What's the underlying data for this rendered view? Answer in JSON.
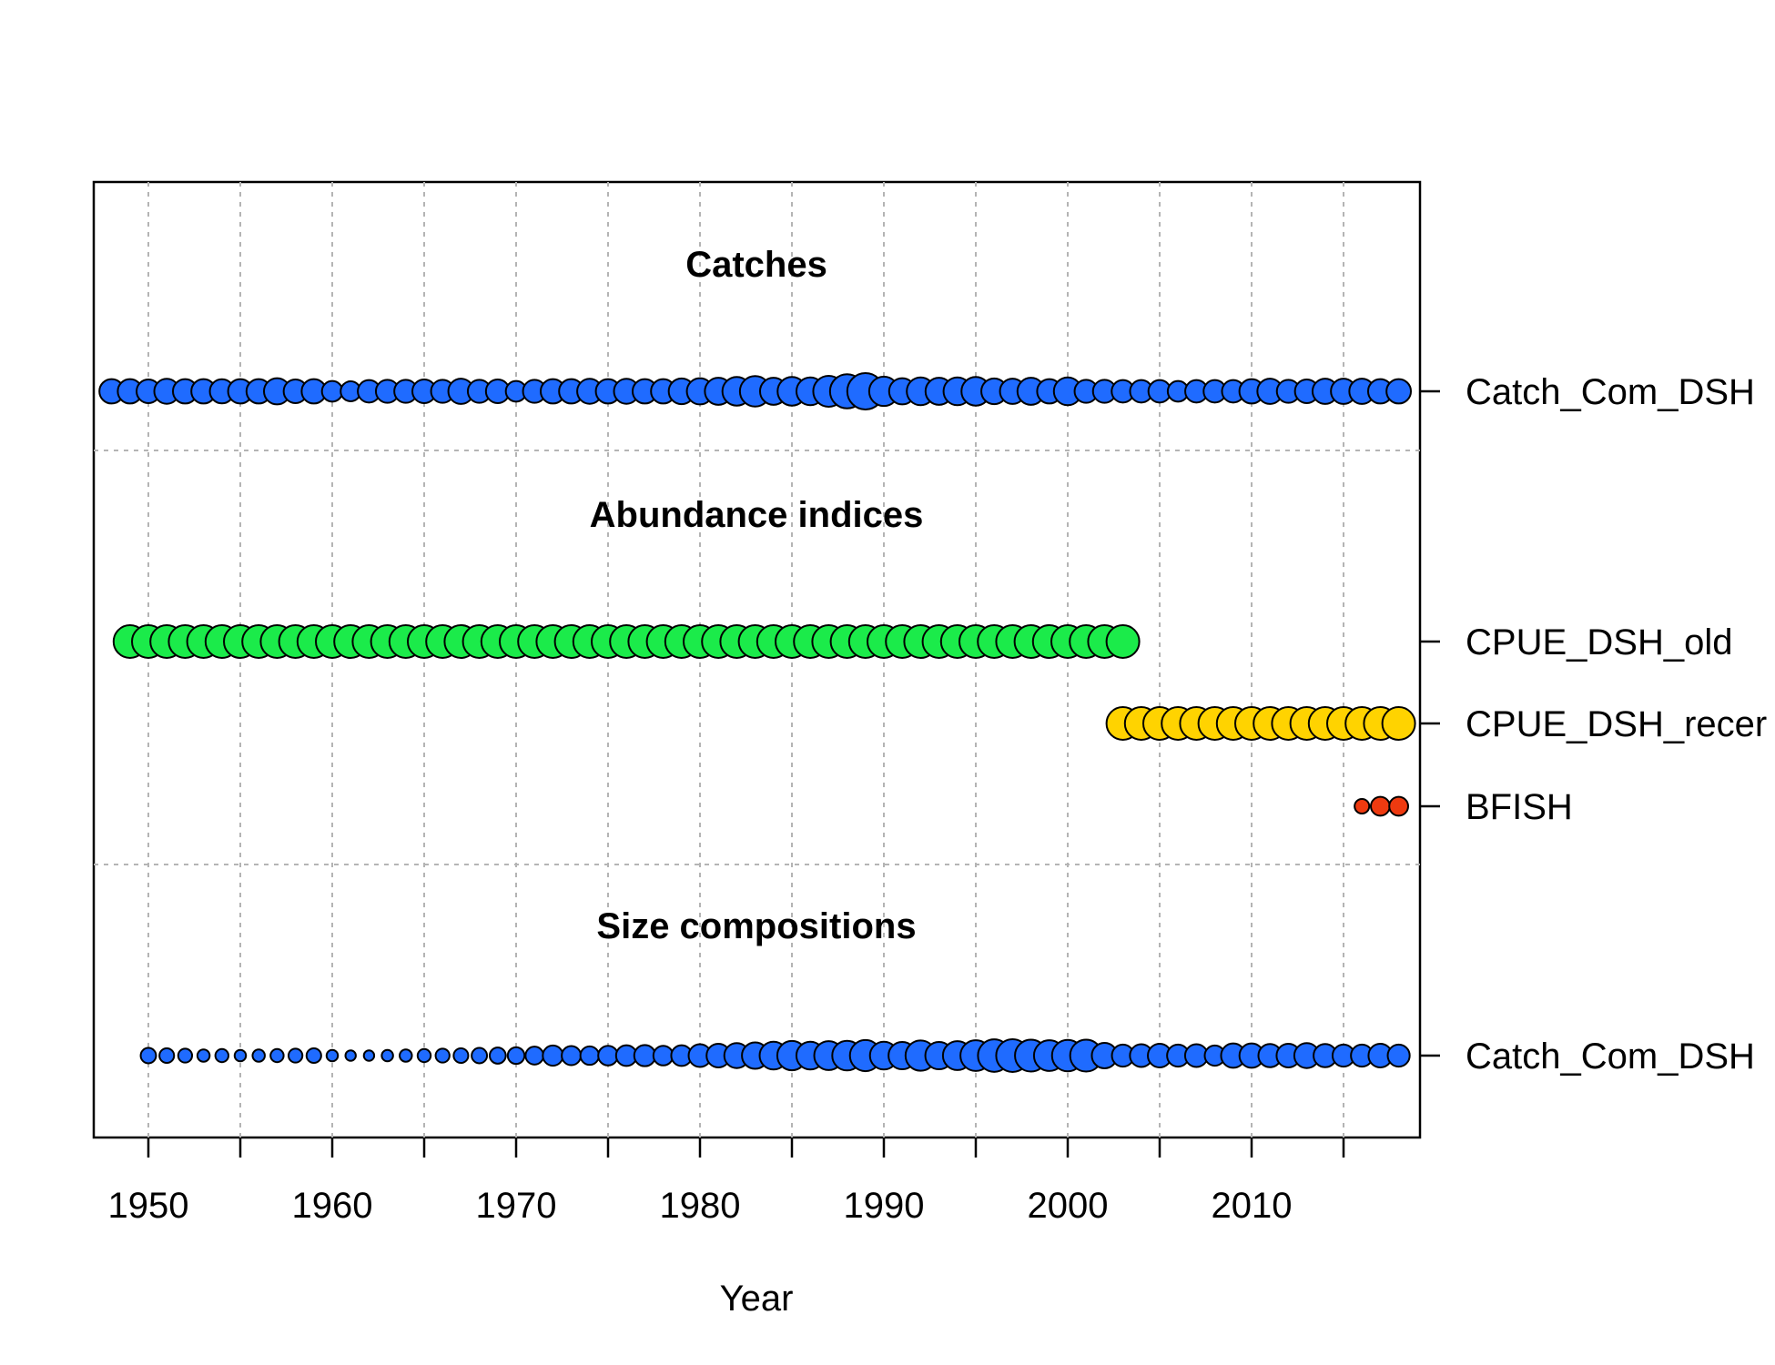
{
  "chart_data": {
    "type": "scatter",
    "xlabel": "Year",
    "xlim": [
      1947,
      2019
    ],
    "x_ticks": [
      1950,
      1955,
      1960,
      1965,
      1970,
      1975,
      1980,
      1985,
      1990,
      1995,
      2000,
      2005,
      2010,
      2015
    ],
    "x_tick_labels": [
      "1950",
      "1960",
      "1970",
      "1980",
      "1990",
      "2000",
      "2010"
    ],
    "grid": true,
    "sections": [
      {
        "title": "Catches"
      },
      {
        "title": "Abundance indices"
      },
      {
        "title": "Size compositions"
      }
    ],
    "series": [
      {
        "name": "Catch_Com_DSH",
        "group": "Catches",
        "color": "#1F6BFF",
        "x": [
          1948,
          1949,
          1950,
          1951,
          1952,
          1953,
          1954,
          1955,
          1956,
          1957,
          1958,
          1959,
          1960,
          1961,
          1962,
          1963,
          1964,
          1965,
          1966,
          1967,
          1968,
          1969,
          1970,
          1971,
          1972,
          1973,
          1974,
          1975,
          1976,
          1977,
          1978,
          1979,
          1980,
          1981,
          1982,
          1983,
          1984,
          1985,
          1986,
          1987,
          1988,
          1989,
          1990,
          1991,
          1992,
          1993,
          1994,
          1995,
          1996,
          1997,
          1998,
          1999,
          2000,
          2001,
          2002,
          2003,
          2004,
          2005,
          2006,
          2007,
          2008,
          2009,
          2010,
          2011,
          2012,
          2013,
          2014,
          2015,
          2016,
          2017,
          2018
        ],
        "values": [
          0.45,
          0.45,
          0.42,
          0.47,
          0.45,
          0.45,
          0.44,
          0.45,
          0.45,
          0.52,
          0.42,
          0.45,
          0.32,
          0.3,
          0.38,
          0.4,
          0.4,
          0.42,
          0.4,
          0.48,
          0.4,
          0.42,
          0.32,
          0.4,
          0.45,
          0.45,
          0.47,
          0.45,
          0.47,
          0.45,
          0.45,
          0.5,
          0.52,
          0.55,
          0.62,
          0.7,
          0.55,
          0.62,
          0.58,
          0.72,
          0.88,
          1.0,
          0.65,
          0.52,
          0.58,
          0.55,
          0.58,
          0.62,
          0.5,
          0.48,
          0.55,
          0.45,
          0.58,
          0.4,
          0.4,
          0.38,
          0.38,
          0.38,
          0.32,
          0.38,
          0.38,
          0.38,
          0.45,
          0.48,
          0.4,
          0.42,
          0.48,
          0.48,
          0.48,
          0.45,
          0.45
        ]
      },
      {
        "name": "CPUE_DSH_old",
        "group": "Abundance indices",
        "color": "#1BEB4A",
        "x": [
          1949,
          1950,
          1951,
          1952,
          1953,
          1954,
          1955,
          1956,
          1957,
          1958,
          1959,
          1960,
          1961,
          1962,
          1963,
          1964,
          1965,
          1966,
          1967,
          1968,
          1969,
          1970,
          1971,
          1972,
          1973,
          1974,
          1975,
          1976,
          1977,
          1978,
          1979,
          1980,
          1981,
          1982,
          1983,
          1984,
          1985,
          1986,
          1987,
          1988,
          1989,
          1990,
          1991,
          1992,
          1993,
          1994,
          1995,
          1996,
          1997,
          1998,
          1999,
          2000,
          2001,
          2002,
          2003
        ],
        "values": [
          1,
          1,
          1,
          1,
          1,
          1,
          1,
          1,
          1,
          1,
          1,
          1,
          1,
          1,
          1,
          1,
          1,
          1,
          1,
          1,
          1,
          1,
          1,
          1,
          1,
          1,
          1,
          1,
          1,
          1,
          1,
          1,
          1,
          1,
          1,
          1,
          1,
          1,
          1,
          1,
          1,
          1,
          1,
          1,
          1,
          1,
          1,
          1,
          1,
          1,
          1,
          1,
          1,
          1,
          1
        ]
      },
      {
        "name": "CPUE_DSH_recent",
        "display_label": "CPUE_DSH_recer",
        "group": "Abundance indices",
        "color": "#FFD300",
        "x": [
          2003,
          2004,
          2005,
          2006,
          2007,
          2008,
          2009,
          2010,
          2011,
          2012,
          2013,
          2014,
          2015,
          2016,
          2017,
          2018
        ],
        "values": [
          1,
          1,
          1,
          1,
          1,
          1,
          1,
          1,
          1,
          1,
          1,
          1,
          1,
          1,
          1,
          1
        ]
      },
      {
        "name": "BFISH",
        "group": "Abundance indices",
        "color": "#EE3A10",
        "x": [
          2016,
          2017,
          2018
        ],
        "values": [
          0.45,
          0.75,
          0.75
        ]
      },
      {
        "name": "Catch_Com_DSH",
        "group": "Size compositions",
        "color": "#1F6BFF",
        "x": [
          1950,
          1951,
          1952,
          1953,
          1954,
          1955,
          1956,
          1957,
          1958,
          1959,
          1960,
          1961,
          1962,
          1963,
          1964,
          1965,
          1966,
          1967,
          1968,
          1969,
          1970,
          1971,
          1972,
          1973,
          1974,
          1975,
          1976,
          1977,
          1978,
          1979,
          1980,
          1981,
          1982,
          1983,
          1984,
          1985,
          1986,
          1987,
          1988,
          1989,
          1990,
          1991,
          1992,
          1993,
          1994,
          1995,
          1996,
          1997,
          1998,
          1999,
          2000,
          2001,
          2002,
          2003,
          2004,
          2005,
          2006,
          2007,
          2008,
          2009,
          2010,
          2011,
          2012,
          2013,
          2014,
          2015,
          2016,
          2017,
          2018
        ],
        "values": [
          0.22,
          0.2,
          0.18,
          0.14,
          0.16,
          0.12,
          0.14,
          0.16,
          0.18,
          0.2,
          0.12,
          0.1,
          0.1,
          0.12,
          0.14,
          0.16,
          0.18,
          0.2,
          0.22,
          0.24,
          0.26,
          0.3,
          0.38,
          0.34,
          0.32,
          0.36,
          0.4,
          0.42,
          0.36,
          0.4,
          0.48,
          0.52,
          0.58,
          0.65,
          0.72,
          0.8,
          0.72,
          0.78,
          0.82,
          0.9,
          0.72,
          0.7,
          0.85,
          0.7,
          0.78,
          0.88,
          0.98,
          1.0,
          0.95,
          0.88,
          0.92,
          0.95,
          0.6,
          0.45,
          0.48,
          0.52,
          0.45,
          0.48,
          0.38,
          0.55,
          0.55,
          0.5,
          0.52,
          0.58,
          0.5,
          0.45,
          0.45,
          0.52,
          0.45
        ]
      }
    ]
  }
}
